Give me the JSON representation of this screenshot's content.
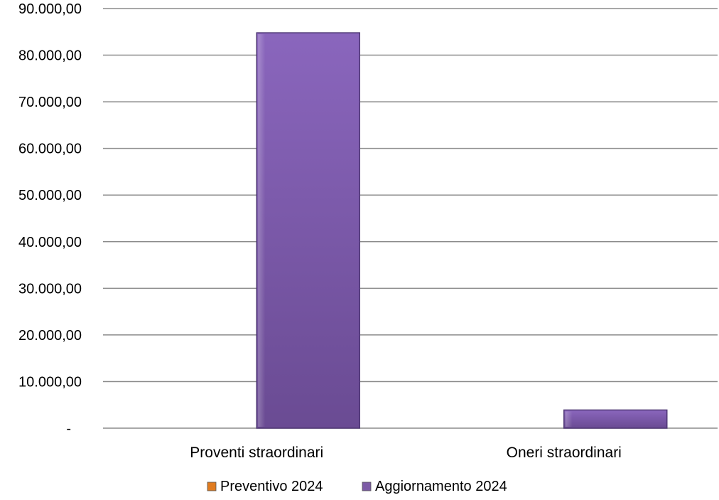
{
  "chart_data": {
    "type": "bar",
    "categories": [
      "Proventi straordinari",
      "Oneri straordinari"
    ],
    "series": [
      {
        "name": "Preventivo 2024",
        "values": [
          0,
          0
        ],
        "color": "#e07b1f"
      },
      {
        "name": "Aggiornamento 2024",
        "values": [
          84800,
          3900
        ],
        "color": "#7d5ba6"
      }
    ],
    "ylim": [
      0,
      90000
    ],
    "yticks": [
      0,
      10000,
      20000,
      30000,
      40000,
      50000,
      60000,
      70000,
      80000,
      90000
    ],
    "ytick_labels": [
      "-",
      "10.000,00",
      "20.000,00",
      "30.000,00",
      "40.000,00",
      "50.000,00",
      "60.000,00",
      "70.000,00",
      "80.000,00",
      "90.000,00"
    ],
    "grid": true,
    "legend_position": "bottom",
    "title": "",
    "xlabel": "",
    "ylabel": ""
  }
}
